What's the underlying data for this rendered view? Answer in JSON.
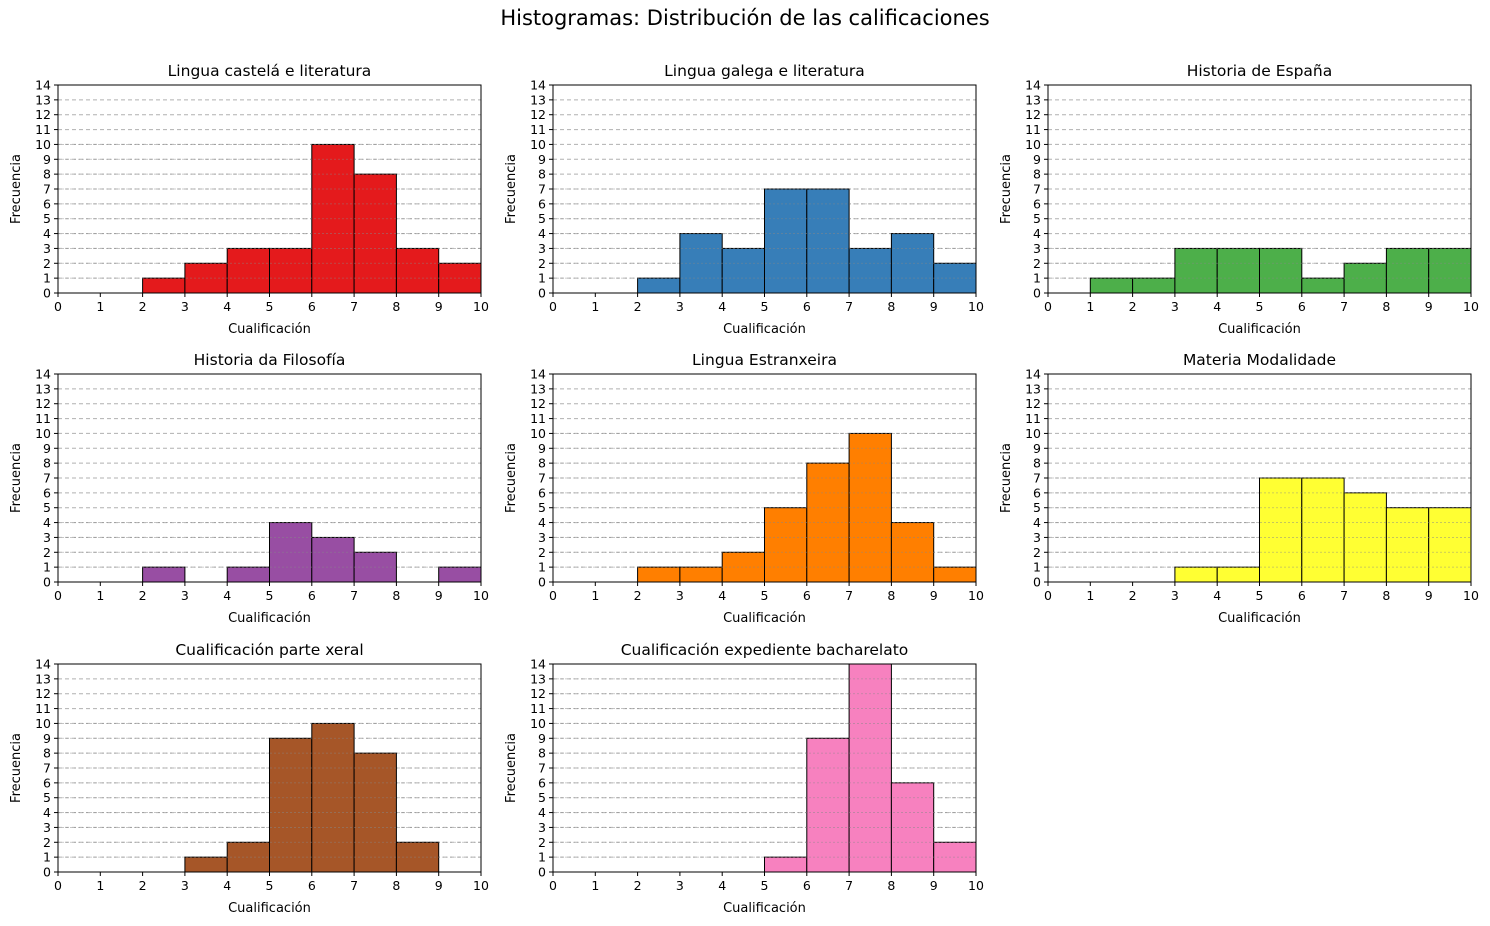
{
  "figure": {
    "suptitle": "Histogramas: Distribución de las calificaciones"
  },
  "chart_data": [
    {
      "type": "bar",
      "title": "Lingua  castelá e literatura",
      "xlabel": "Cualificación",
      "ylabel": "Frecuencia",
      "color": "#e41a1c",
      "bin_edges": [
        0,
        1,
        2,
        3,
        4,
        5,
        6,
        7,
        8,
        9,
        10
      ],
      "values": [
        0,
        0,
        1,
        2,
        3,
        3,
        10,
        8,
        3,
        2
      ],
      "xlim": [
        0,
        10
      ],
      "ylim": [
        0,
        14
      ],
      "grid": "y-dashed"
    },
    {
      "type": "bar",
      "title": "Lingua galega e literatura",
      "xlabel": "Cualificación",
      "ylabel": "Frecuencia",
      "color": "#377eb8",
      "bin_edges": [
        0,
        1,
        2,
        3,
        4,
        5,
        6,
        7,
        8,
        9,
        10
      ],
      "values": [
        0,
        0,
        1,
        4,
        3,
        7,
        7,
        3,
        4,
        2
      ],
      "xlim": [
        0,
        10
      ],
      "ylim": [
        0,
        14
      ],
      "grid": "y-dashed"
    },
    {
      "type": "bar",
      "title": "Historia de España",
      "xlabel": "Cualificación",
      "ylabel": "Frecuencia",
      "color": "#4daf4a",
      "bin_edges": [
        0,
        1,
        2,
        3,
        4,
        5,
        6,
        7,
        8,
        9,
        10
      ],
      "values": [
        0,
        1,
        1,
        3,
        3,
        3,
        1,
        2,
        3,
        3
      ],
      "xlim": [
        0,
        10
      ],
      "ylim": [
        0,
        14
      ],
      "grid": "y-dashed"
    },
    {
      "type": "bar",
      "title": "Historia da Filosofía",
      "xlabel": "Cualificación",
      "ylabel": "Frecuencia",
      "color": "#984ea3",
      "bin_edges": [
        0,
        1,
        2,
        3,
        4,
        5,
        6,
        7,
        8,
        9,
        10
      ],
      "values": [
        0,
        0,
        1,
        0,
        1,
        4,
        3,
        2,
        0,
        1
      ],
      "xlim": [
        0,
        10
      ],
      "ylim": [
        0,
        14
      ],
      "grid": "y-dashed"
    },
    {
      "type": "bar",
      "title": "Lingua Estranxeira",
      "xlabel": "Cualificación",
      "ylabel": "Frecuencia",
      "color": "#ff7f00",
      "bin_edges": [
        0,
        1,
        2,
        3,
        4,
        5,
        6,
        7,
        8,
        9,
        10
      ],
      "values": [
        0,
        0,
        1,
        1,
        2,
        5,
        8,
        10,
        4,
        1
      ],
      "xlim": [
        0,
        10
      ],
      "ylim": [
        0,
        14
      ],
      "grid": "y-dashed"
    },
    {
      "type": "bar",
      "title": "Materia Modalidade",
      "xlabel": "Cualificación",
      "ylabel": "Frecuencia",
      "color": "#ffff33",
      "bin_edges": [
        0,
        1,
        2,
        3,
        4,
        5,
        6,
        7,
        8,
        9,
        10
      ],
      "values": [
        0,
        0,
        0,
        1,
        1,
        7,
        7,
        6,
        5,
        5
      ],
      "xlim": [
        0,
        10
      ],
      "ylim": [
        0,
        14
      ],
      "grid": "y-dashed"
    },
    {
      "type": "bar",
      "title": "Cualificación parte xeral",
      "xlabel": "Cualificación",
      "ylabel": "Frecuencia",
      "color": "#a65628",
      "bin_edges": [
        0,
        1,
        2,
        3,
        4,
        5,
        6,
        7,
        8,
        9,
        10
      ],
      "values": [
        0,
        0,
        0,
        1,
        2,
        9,
        10,
        8,
        2,
        0
      ],
      "xlim": [
        0,
        10
      ],
      "ylim": [
        0,
        14
      ],
      "grid": "y-dashed"
    },
    {
      "type": "bar",
      "title": "Cualificación expediente bacharelato",
      "xlabel": "Cualificación",
      "ylabel": "Frecuencia",
      "color": "#f781bf",
      "bin_edges": [
        0,
        1,
        2,
        3,
        4,
        5,
        6,
        7,
        8,
        9,
        10
      ],
      "values": [
        0,
        0,
        0,
        0,
        0,
        1,
        9,
        14,
        6,
        2
      ],
      "xlim": [
        0,
        10
      ],
      "ylim": [
        0,
        14
      ],
      "grid": "y-dashed"
    }
  ]
}
